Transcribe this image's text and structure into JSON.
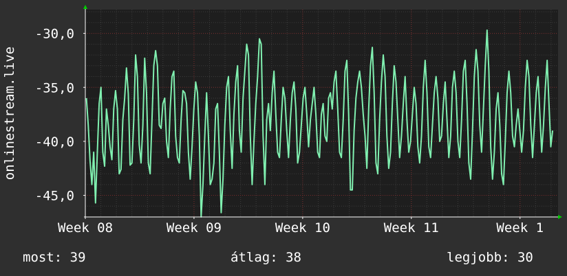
{
  "chart_data": {
    "type": "line",
    "ylabel": "onlinestream.live",
    "y_ticks": [
      {
        "value": -30,
        "label": "-30,0"
      },
      {
        "value": -35,
        "label": "-35,0"
      },
      {
        "value": -40,
        "label": "-40,0"
      },
      {
        "value": -45,
        "label": "-45,0"
      }
    ],
    "ylim": [
      -47.0,
      -27.8
    ],
    "x_ticks": [
      {
        "value": 0.0,
        "label": "Week 08"
      },
      {
        "value": 1.0,
        "label": "Week 09"
      },
      {
        "value": 2.0,
        "label": "Week 10"
      },
      {
        "value": 3.0,
        "label": "Week 11"
      },
      {
        "value": 4.0,
        "label": "Week 1"
      }
    ],
    "xlim": [
      0.0,
      4.35
    ],
    "grid": true,
    "colors": {
      "background": "#2f2f2f",
      "plot_background": "#1e1e1e",
      "line": "#80f0b0",
      "major_grid": "#7a2a2a",
      "minor_grid": "#3c3c3c",
      "axis": "#ffffff",
      "arrow": "#00cc00"
    },
    "series": [
      {
        "values": [
          -36.0,
          -38.5,
          -41.8,
          -44.0,
          -41.0,
          -45.7,
          -41.0,
          -36.5,
          -35.0,
          -41.0,
          -42.3,
          -37.0,
          -38.5,
          -40.5,
          -41.7,
          -37.0,
          -35.3,
          -37.0,
          -43.0,
          -42.6,
          -38.0,
          -36.0,
          -33.2,
          -35.6,
          -42.2,
          -42.0,
          -38.0,
          -32.0,
          -34.0,
          -40.3,
          -42.0,
          -38.5,
          -32.3,
          -35.5,
          -42.0,
          -43.0,
          -38.0,
          -33.0,
          -31.6,
          -33.0,
          -38.5,
          -38.8,
          -36.5,
          -36.0,
          -40.0,
          -41.5,
          -37.0,
          -34.0,
          -33.5,
          -39.5,
          -41.5,
          -42.0,
          -38.0,
          -35.3,
          -35.5,
          -36.5,
          -41.0,
          -43.5,
          -40.5,
          -37.0,
          -34.5,
          -35.5,
          -39.5,
          -47.0,
          -44.0,
          -39.5,
          -35.5,
          -39.5,
          -44.0,
          -43.5,
          -42.0,
          -37.0,
          -36.5,
          -41.0,
          -46.6,
          -43.5,
          -38.5,
          -35.0,
          -34.0,
          -39.0,
          -42.5,
          -37.5,
          -34.5,
          -33.0,
          -39.0,
          -41.0,
          -36.0,
          -33.5,
          -31.0,
          -32.0,
          -39.5,
          -44.0,
          -40.0,
          -36.5,
          -34.0,
          -30.5,
          -31.0,
          -39.5,
          -44.0,
          -38.0,
          -36.5,
          -39.0,
          -35.5,
          -33.5,
          -37.5,
          -41.0,
          -41.5,
          -38.0,
          -35.0,
          -36.0,
          -39.0,
          -41.5,
          -38.0,
          -35.5,
          -34.5,
          -37.0,
          -42.0,
          -41.0,
          -38.5,
          -36.0,
          -35.0,
          -37.5,
          -40.5,
          -38.0,
          -36.5,
          -35.0,
          -37.5,
          -41.0,
          -41.5,
          -37.5,
          -36.5,
          -39.5,
          -40.0,
          -36.0,
          -35.5,
          -37.0,
          -34.5,
          -33.5,
          -37.0,
          -41.0,
          -41.5,
          -38.0,
          -33.5,
          -32.5,
          -37.5,
          -44.5,
          -44.5,
          -39.0,
          -36.0,
          -34.5,
          -33.5,
          -35.0,
          -37.5,
          -39.5,
          -42.5,
          -37.0,
          -33.0,
          -31.3,
          -35.5,
          -42.0,
          -43.0,
          -38.0,
          -34.5,
          -32.0,
          -34.0,
          -39.5,
          -42.5,
          -41.0,
          -36.5,
          -33.0,
          -34.5,
          -38.0,
          -41.5,
          -39.5,
          -36.5,
          -34.0,
          -38.0,
          -41.0,
          -40.0,
          -37.5,
          -35.0,
          -36.5,
          -40.5,
          -42.0,
          -39.5,
          -35.0,
          -32.5,
          -35.5,
          -40.5,
          -41.5,
          -38.5,
          -35.5,
          -34.0,
          -36.0,
          -40.0,
          -39.5,
          -36.5,
          -34.5,
          -38.0,
          -41.5,
          -39.5,
          -35.0,
          -33.5,
          -35.5,
          -40.0,
          -41.5,
          -38.0,
          -33.5,
          -32.5,
          -36.5,
          -42.0,
          -43.5,
          -39.0,
          -34.0,
          -31.5,
          -33.5,
          -38.5,
          -41.0,
          -37.0,
          -33.0,
          -29.7,
          -33.5,
          -40.5,
          -43.5,
          -41.0,
          -37.0,
          -35.5,
          -38.5,
          -43.0,
          -44.0,
          -40.0,
          -35.5,
          -33.5,
          -35.5,
          -39.5,
          -40.5,
          -38.5,
          -37.0,
          -39.0,
          -41.0,
          -39.0,
          -35.0,
          -32.5,
          -34.0,
          -38.5,
          -41.5,
          -38.5,
          -35.5,
          -34.0,
          -37.5,
          -41.0,
          -38.5,
          -35.0,
          -32.5,
          -36.5,
          -40.5,
          -39.0
        ]
      }
    ]
  },
  "footer": {
    "current_label": "most: 39",
    "average_label": "átlag: 38",
    "max_label": "legjobb: 30"
  }
}
